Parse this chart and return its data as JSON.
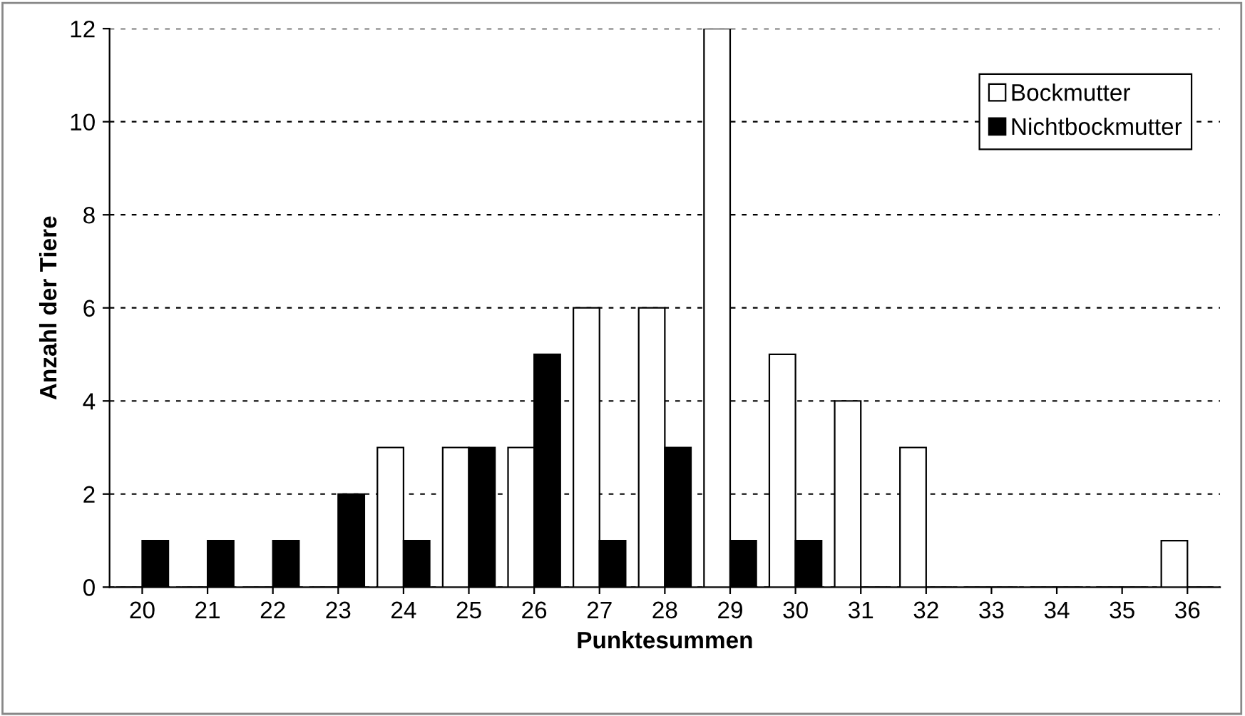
{
  "chart_data": {
    "type": "bar",
    "xlabel": "Punktesummen",
    "ylabel": "Anzahl der Tiere",
    "categories": [
      "20",
      "21",
      "22",
      "23",
      "24",
      "25",
      "26",
      "27",
      "28",
      "29",
      "30",
      "31",
      "32",
      "33",
      "34",
      "35",
      "36"
    ],
    "series": [
      {
        "name": "Bockmutter",
        "color": "#ffffff",
        "values": [
          0,
          0,
          0,
          0,
          3,
          3,
          3,
          6,
          6,
          12,
          5,
          4,
          3,
          0,
          0,
          0,
          1
        ]
      },
      {
        "name": "Nichtbockmutter",
        "color": "#000000",
        "values": [
          1,
          1,
          1,
          2,
          1,
          3,
          5,
          1,
          3,
          1,
          1,
          0,
          0,
          0,
          0,
          0,
          0
        ]
      }
    ],
    "ylim": [
      0,
      12
    ],
    "yticks": [
      0,
      2,
      4,
      6,
      8,
      10,
      12
    ],
    "grid": "y",
    "legend": "top right"
  }
}
